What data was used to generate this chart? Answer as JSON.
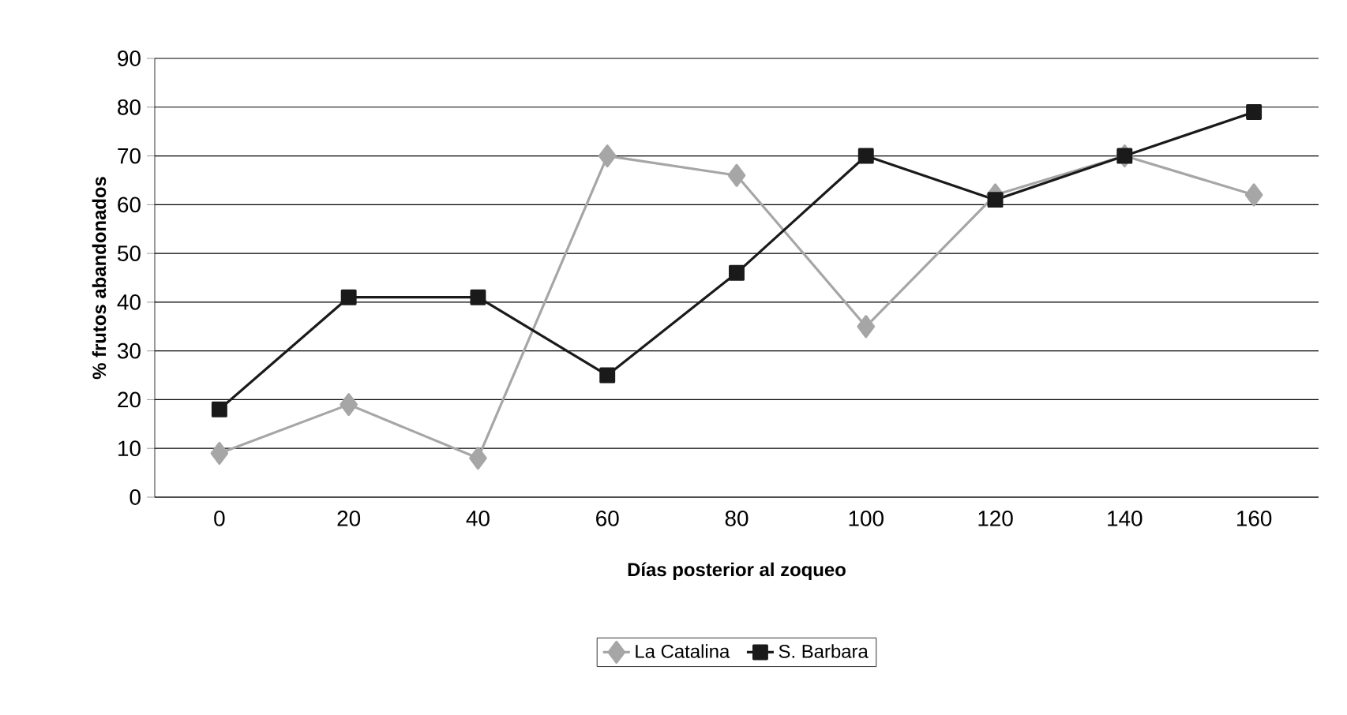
{
  "chart_data": {
    "type": "line",
    "xlabel": "Días posterior al zoqueo",
    "ylabel": "% frutos abandonados",
    "categories": [
      "0",
      "20",
      "40",
      "60",
      "80",
      "100",
      "120",
      "140",
      "160"
    ],
    "series": [
      {
        "name": "La Catalina",
        "color": "#a6a6a6",
        "marker": "diamond",
        "values": [
          9,
          19,
          8,
          70,
          66,
          35,
          62,
          70,
          62
        ]
      },
      {
        "name": "S. Barbara",
        "color": "#1a1a1a",
        "marker": "square",
        "values": [
          18,
          41,
          41,
          25,
          46,
          70,
          61,
          70,
          79
        ]
      }
    ],
    "ylim": [
      0,
      90
    ],
    "yticks": [
      0,
      10,
      20,
      30,
      40,
      50,
      60,
      70,
      80,
      90
    ],
    "grid": "y",
    "legend": "bottom",
    "line_style": "solid"
  }
}
